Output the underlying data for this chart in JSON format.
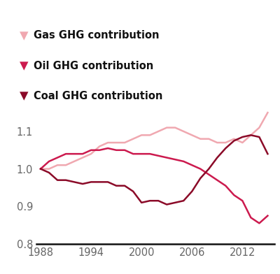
{
  "gas_years": [
    1988,
    1989,
    1990,
    1991,
    1992,
    1993,
    1994,
    1995,
    1996,
    1997,
    1998,
    1999,
    2000,
    2001,
    2002,
    2003,
    2004,
    2005,
    2006,
    2007,
    2008,
    2009,
    2010,
    2011,
    2012,
    2013,
    2014,
    2015
  ],
  "gas_values": [
    1.0,
    1.0,
    1.01,
    1.01,
    1.02,
    1.03,
    1.04,
    1.06,
    1.07,
    1.07,
    1.07,
    1.08,
    1.09,
    1.09,
    1.1,
    1.11,
    1.11,
    1.1,
    1.09,
    1.08,
    1.08,
    1.07,
    1.07,
    1.08,
    1.07,
    1.09,
    1.11,
    1.15
  ],
  "oil_years": [
    1988,
    1989,
    1990,
    1991,
    1992,
    1993,
    1994,
    1995,
    1996,
    1997,
    1998,
    1999,
    2000,
    2001,
    2002,
    2003,
    2004,
    2005,
    2006,
    2007,
    2008,
    2009,
    2010,
    2011,
    2012,
    2013,
    2014,
    2015
  ],
  "oil_values": [
    1.0,
    1.02,
    1.03,
    1.04,
    1.04,
    1.04,
    1.05,
    1.05,
    1.055,
    1.05,
    1.05,
    1.04,
    1.04,
    1.04,
    1.035,
    1.03,
    1.025,
    1.02,
    1.01,
    1.0,
    0.985,
    0.97,
    0.955,
    0.93,
    0.915,
    0.87,
    0.855,
    0.875
  ],
  "coal_years": [
    1988,
    1989,
    1990,
    1991,
    1992,
    1993,
    1994,
    1995,
    1996,
    1997,
    1998,
    1999,
    2000,
    2001,
    2002,
    2003,
    2004,
    2005,
    2006,
    2007,
    2008,
    2009,
    2010,
    2011,
    2012,
    2013,
    2014,
    2015
  ],
  "coal_values": [
    1.0,
    0.99,
    0.97,
    0.97,
    0.965,
    0.96,
    0.965,
    0.965,
    0.965,
    0.955,
    0.955,
    0.94,
    0.91,
    0.915,
    0.915,
    0.905,
    0.91,
    0.915,
    0.94,
    0.975,
    1.0,
    1.03,
    1.055,
    1.075,
    1.085,
    1.09,
    1.085,
    1.04
  ],
  "gas_color": "#f0a8b0",
  "oil_color": "#cc1a4e",
  "coal_color": "#8b0a28",
  "background_color": "#ffffff",
  "yticks": [
    0.8,
    0.9,
    1.0,
    1.1
  ],
  "xticks": [
    1988,
    1994,
    2000,
    2006,
    2012
  ],
  "xlim": [
    1987.5,
    2015.8
  ],
  "ylim": [
    0.8,
    1.18
  ],
  "legend_labels": [
    "Gas GHG contribution",
    "Oil GHG contribution",
    "Coal GHG contribution"
  ],
  "linewidth": 1.8,
  "legend_fontsize": 10.5,
  "tick_fontsize": 10.5
}
